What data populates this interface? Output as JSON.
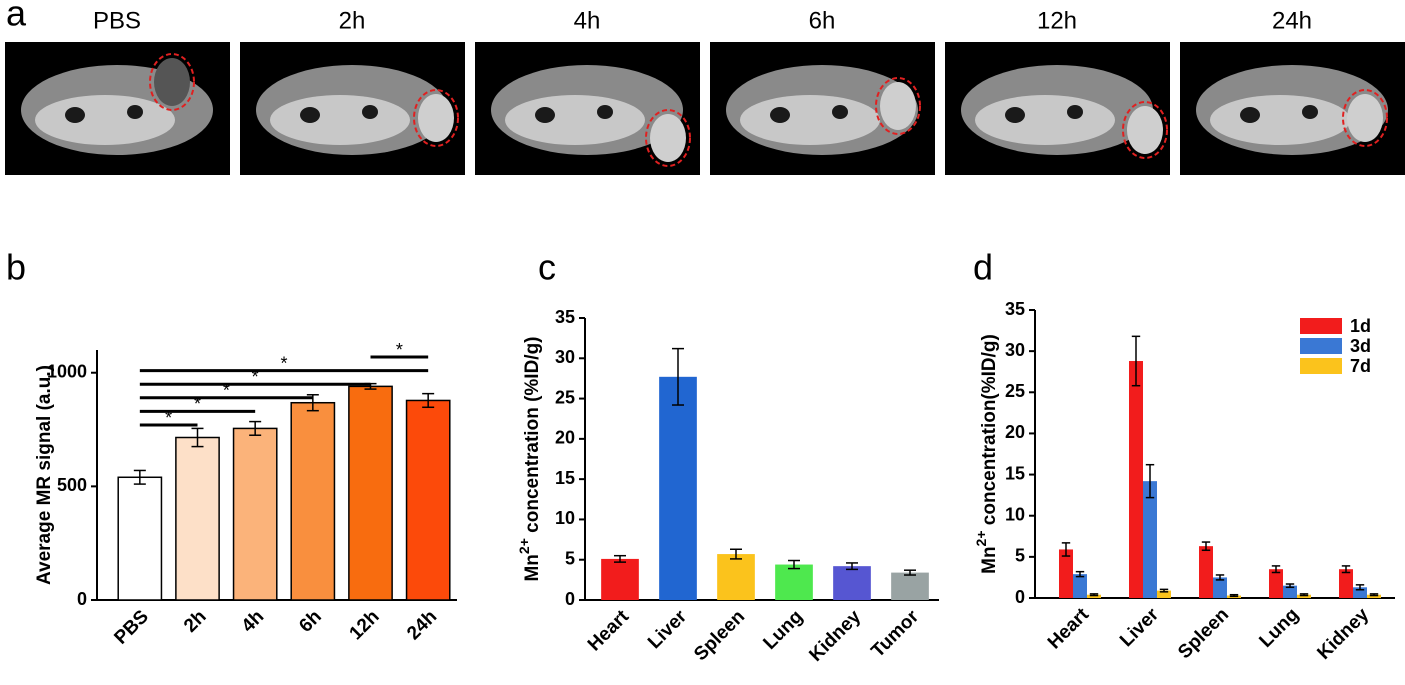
{
  "images": {
    "panel": "a",
    "titles": [
      "PBS",
      "2h",
      "4h",
      "6h",
      "12h",
      "24h"
    ]
  },
  "chart_data": [
    {
      "type": "bar",
      "panel": "b",
      "ylabel": "Average MR signal (a.u.)",
      "categories": [
        "PBS",
        "2h",
        "4h",
        "6h",
        "12h",
        "24h"
      ],
      "values": [
        540,
        715,
        755,
        868,
        940,
        878
      ],
      "errors": [
        30,
        40,
        30,
        35,
        12,
        30
      ],
      "colors": [
        "#ffffff",
        "#fde0c8",
        "#fbb37a",
        "#f98f3e",
        "#f86c0f",
        "#fc4a0a"
      ],
      "ylim": [
        0,
        1100
      ],
      "yticks": [
        0,
        500,
        1000
      ],
      "significance": [
        {
          "from": 0,
          "to": 1,
          "label": "*"
        },
        {
          "from": 0,
          "to": 2,
          "label": "*"
        },
        {
          "from": 0,
          "to": 3,
          "label": "*"
        },
        {
          "from": 0,
          "to": 4,
          "label": "*"
        },
        {
          "from": 0,
          "to": 5,
          "label": "*"
        },
        {
          "from": 4,
          "to": 5,
          "label": "*"
        }
      ]
    },
    {
      "type": "bar",
      "panel": "c",
      "ylabel": {
        "text": "Mn",
        "sup": "2+",
        "after": " concentration (%ID/g)"
      },
      "categories": [
        "Heart",
        "Liver",
        "Spleen",
        "Lung",
        "Kidney",
        "Tumor"
      ],
      "values": [
        5.1,
        27.7,
        5.7,
        4.4,
        4.2,
        3.4
      ],
      "errors": [
        0.4,
        3.5,
        0.6,
        0.5,
        0.4,
        0.3
      ],
      "colors": [
        "#f21c1c",
        "#2166d1",
        "#fbc31c",
        "#4ee84e",
        "#5656d2",
        "#99a3a3"
      ],
      "ylim": [
        0,
        35
      ],
      "yticks": [
        0,
        5,
        10,
        15,
        20,
        25,
        30,
        35
      ]
    },
    {
      "type": "grouped-bar",
      "panel": "d",
      "ylabel": {
        "text": "Mn",
        "sup": "2+",
        "after": " concentration(%ID/g)"
      },
      "categories": [
        "Heart",
        "Liver",
        "Spleen",
        "Lung",
        "Kidney"
      ],
      "series": [
        {
          "name": "1d",
          "color": "#f21c1c",
          "values": [
            5.9,
            28.8,
            6.3,
            3.5,
            3.5
          ],
          "errors": [
            0.8,
            3.0,
            0.5,
            0.4,
            0.4
          ]
        },
        {
          "name": "3d",
          "color": "#3a78d4",
          "values": [
            2.9,
            14.2,
            2.5,
            1.5,
            1.3
          ],
          "errors": [
            0.3,
            2.0,
            0.3,
            0.2,
            0.3
          ]
        },
        {
          "name": "7d",
          "color": "#fbc31c",
          "values": [
            0.4,
            0.9,
            0.3,
            0.4,
            0.4
          ],
          "errors": [
            0.1,
            0.15,
            0.1,
            0.1,
            0.1
          ]
        }
      ],
      "ylim": [
        0,
        35
      ],
      "yticks": [
        0,
        5,
        10,
        15,
        20,
        25,
        30,
        35
      ],
      "legend": "top-right"
    }
  ]
}
